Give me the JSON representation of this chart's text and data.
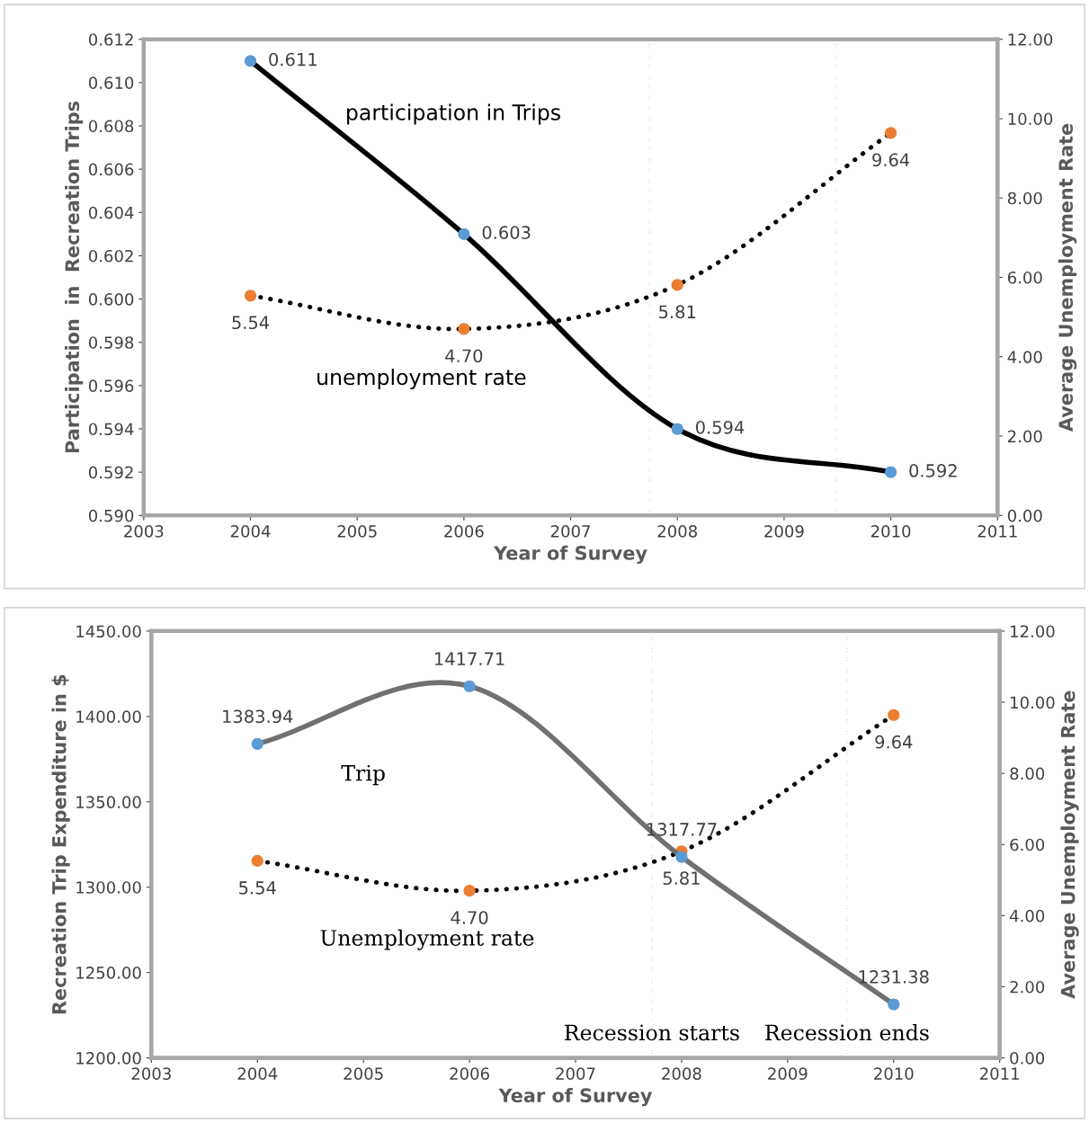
{
  "chart_data": [
    {
      "type": "line",
      "x": [
        2004,
        2006,
        2008,
        2010
      ],
      "xlabel": "Year of Survey",
      "ylabel": "Participation  in  Recreation Trips",
      "y2label": "Average Unemployment Rate",
      "xlim": [
        2003,
        2011
      ],
      "xticks": [
        2003,
        2004,
        2005,
        2006,
        2007,
        2008,
        2009,
        2010,
        2011
      ],
      "ylim": [
        0.59,
        0.612
      ],
      "yticks": [
        {
          "value": 0.59,
          "label": "0.590"
        },
        {
          "value": 0.592,
          "label": "0.592"
        },
        {
          "value": 0.594,
          "label": "0.594"
        },
        {
          "value": 0.596,
          "label": "0.596"
        },
        {
          "value": 0.598,
          "label": "0.598"
        },
        {
          "value": 0.6,
          "label": "0.600"
        },
        {
          "value": 0.602,
          "label": "0.602"
        },
        {
          "value": 0.604,
          "label": "0.604"
        },
        {
          "value": 0.606,
          "label": "0.606"
        },
        {
          "value": 0.608,
          "label": "0.608"
        },
        {
          "value": 0.61,
          "label": "0.610"
        },
        {
          "value": 0.612,
          "label": "0.612"
        }
      ],
      "y2lim": [
        0,
        12
      ],
      "y2ticks": [
        {
          "value": 0,
          "label": "0.00"
        },
        {
          "value": 2,
          "label": "2.00"
        },
        {
          "value": 4,
          "label": "4.00"
        },
        {
          "value": 6,
          "label": "6.00"
        },
        {
          "value": 8,
          "label": "8.00"
        },
        {
          "value": 10,
          "label": "10.00"
        },
        {
          "value": 12,
          "label": "12.00"
        }
      ],
      "series": [
        {
          "name": "participation in Trips",
          "color": "#000000",
          "colors": [
            "#5b9bd5",
            "#5b9bd5",
            "#5b9bd5",
            "#5b9bd5"
          ],
          "line_style": "solid",
          "values": [
            0.611,
            0.603,
            0.594,
            0.592
          ]
        },
        {
          "name": "unemployment rate",
          "color": "#000000",
          "colors": [
            "#ed7d31",
            "#ed7d31",
            "#ed7d31",
            "#ed7d31"
          ],
          "line_style": "dotted",
          "axis": "y2",
          "values": [
            5.54,
            4.7,
            5.81,
            9.64
          ],
          "value_labels": [
            "5.54",
            "4.70",
            "5.81",
            "9.64"
          ]
        }
      ],
      "ref_lines": [
        {
          "axis": "x",
          "value": 2007.74,
          "color": "#404040",
          "line_style": "dotted"
        },
        {
          "axis": "x",
          "value": 2009.49,
          "color": "#404040",
          "line_style": "dotted"
        }
      ],
      "marker": "circle",
      "data_labels": true,
      "grid": false,
      "legend": false
    },
    {
      "type": "line",
      "x": [
        2004,
        2006,
        2008,
        2010
      ],
      "xlabel": "Year of Survey",
      "ylabel": "Recreation Trip Expenditure in $",
      "y2label": "Average Unemployment Rate",
      "xlim": [
        2003,
        2011
      ],
      "xticks": [
        2003,
        2004,
        2005,
        2006,
        2007,
        2008,
        2009,
        2010,
        2011
      ],
      "ylim": [
        1200,
        1450
      ],
      "yticks": [
        {
          "value": 1200,
          "label": "1200.00"
        },
        {
          "value": 1250,
          "label": "1250.00"
        },
        {
          "value": 1300,
          "label": "1300.00"
        },
        {
          "value": 1350,
          "label": "1350.00"
        },
        {
          "value": 1400,
          "label": "1400.00"
        },
        {
          "value": 1450,
          "label": "1450.00"
        }
      ],
      "y2lim": [
        0,
        12
      ],
      "y2ticks": [
        {
          "value": 0,
          "label": "0.00"
        },
        {
          "value": 2,
          "label": "2.00"
        },
        {
          "value": 4,
          "label": "4.00"
        },
        {
          "value": 6,
          "label": "6.00"
        },
        {
          "value": 8,
          "label": "8.00"
        },
        {
          "value": 10,
          "label": "10.00"
        },
        {
          "value": 12,
          "label": "12.00"
        }
      ],
      "series": [
        {
          "name": "Trip",
          "color": "#707070",
          "colors": [
            "#5b9bd5",
            "#5b9bd5",
            "#5b9bd5",
            "#5b9bd5"
          ],
          "line_style": "solid",
          "values": [
            1383.94,
            1417.71,
            1317.77,
            1231.38
          ]
        },
        {
          "name": "Unemployment rate",
          "color": "#000000",
          "colors": [
            "#ed7d31",
            "#ed7d31",
            "#ed7d31",
            "#ed7d31"
          ],
          "line_style": "dotted",
          "axis": "y2",
          "values": [
            5.54,
            4.7,
            5.81,
            9.64
          ],
          "value_labels": [
            "5.54",
            "4.70",
            "5.81",
            "9.64"
          ]
        }
      ],
      "ref_lines": [
        {
          "axis": "x",
          "value": 2007.72,
          "label": "Recession starts",
          "color": "#404040",
          "line_style": "dotted"
        },
        {
          "axis": "x",
          "value": 2009.56,
          "label": "Recession ends",
          "color": "#404040",
          "line_style": "dotted"
        }
      ],
      "marker": "circle",
      "data_labels": true,
      "grid": false,
      "legend": false
    }
  ]
}
